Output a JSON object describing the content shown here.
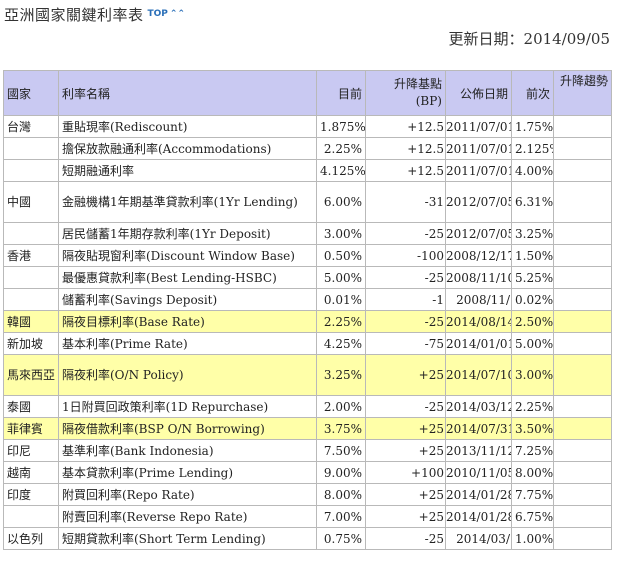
{
  "header": {
    "title": "亞洲國家關鍵利率表",
    "top_link": "TOP",
    "top_icon": "double-chevron-up-icon",
    "updated": "更新日期：2014/09/05"
  },
  "table": {
    "columns": {
      "country": "國家",
      "name": "利率名稱",
      "current": "目前",
      "change": "升降基點(BP)",
      "date": "公佈日期",
      "previous": "前次",
      "trend": "升降趨勢"
    },
    "highlight_color": "#ffffa8",
    "header_color": "#c9c9f2",
    "rows": [
      {
        "country": "台灣",
        "name": "重貼現率(Rediscount)",
        "current": "1.875%",
        "change": "+12.5",
        "date": "2011/07/01",
        "previous": "1.75%",
        "trend": "",
        "highlight": false
      },
      {
        "country": "",
        "name": "擔保放款融通利率(Accommodations)",
        "current": "2.25%",
        "change": "+12.5",
        "date": "2011/07/01",
        "previous": "2.125%",
        "trend": "",
        "highlight": false
      },
      {
        "country": "",
        "name": "短期融通利率",
        "current": "4.125%",
        "change": "+12.5",
        "date": "2011/07/01",
        "previous": "4.00%",
        "trend": "",
        "highlight": false
      },
      {
        "country": "中國",
        "name": "金融機構1年期基準貸款利率(1Yr Lending)",
        "current": "6.00%",
        "change": "-31",
        "date": "2012/07/05",
        "previous": "6.31%",
        "trend": "",
        "highlight": false,
        "tall": true
      },
      {
        "country": "",
        "name": "居民儲蓄1年期存款利率(1Yr Deposit)",
        "current": "3.00%",
        "change": "-25",
        "date": "2012/07/05",
        "previous": "3.25%",
        "trend": "",
        "highlight": false
      },
      {
        "country": "香港",
        "name": "隔夜貼現窗利率(Discount Window Base)",
        "current": "0.50%",
        "change": "-100",
        "date": "2008/12/17",
        "previous": "1.50%",
        "trend": "",
        "highlight": false
      },
      {
        "country": "",
        "name": "最優惠貸款利率(Best Lending-HSBC)",
        "current": "5.00%",
        "change": "-25",
        "date": "2008/11/10",
        "previous": "5.25%",
        "trend": "",
        "highlight": false
      },
      {
        "country": "",
        "name": "儲蓄利率(Savings Deposit)",
        "current": "0.01%",
        "change": "-1",
        "date": "2008/11/",
        "previous": "0.02%",
        "trend": "",
        "highlight": false
      },
      {
        "country": "韓國",
        "name": "隔夜目標利率(Base Rate)",
        "current": "2.25%",
        "change": "-25",
        "date": "2014/08/14",
        "previous": "2.50%",
        "trend": "",
        "highlight": true
      },
      {
        "country": "新加坡",
        "name": "基本利率(Prime Rate)",
        "current": "4.25%",
        "change": "-75",
        "date": "2014/01/01",
        "previous": "5.00%",
        "trend": "",
        "highlight": false
      },
      {
        "country": "馬來西亞",
        "name": "隔夜利率(O/N Policy)",
        "current": "3.25%",
        "change": "+25",
        "date": "2014/07/10",
        "previous": "3.00%",
        "trend": "",
        "highlight": true,
        "tall": true
      },
      {
        "country": "泰國",
        "name": "1日附買回政策利率(1D Repurchase)",
        "current": "2.00%",
        "change": "-25",
        "date": "2014/03/12",
        "previous": "2.25%",
        "trend": "",
        "highlight": false
      },
      {
        "country": "菲律賓",
        "name": "隔夜借款利率(BSP O/N Borrowing)",
        "current": "3.75%",
        "change": "+25",
        "date": "2014/07/31",
        "previous": "3.50%",
        "trend": "",
        "highlight": true
      },
      {
        "country": "印尼",
        "name": "基準利率(Bank Indonesia)",
        "current": "7.50%",
        "change": "+25",
        "date": "2013/11/12",
        "previous": "7.25%",
        "trend": "",
        "highlight": false
      },
      {
        "country": "越南",
        "name": "基本貸款利率(Prime Lending)",
        "current": "9.00%",
        "change": "+100",
        "date": "2010/11/05",
        "previous": "8.00%",
        "trend": "",
        "highlight": false
      },
      {
        "country": "印度",
        "name": "附買回利率(Repo Rate)",
        "current": "8.00%",
        "change": "+25",
        "date": "2014/01/28",
        "previous": "7.75%",
        "trend": "",
        "highlight": false
      },
      {
        "country": "",
        "name": "附賣回利率(Reverse Repo Rate)",
        "current": "7.00%",
        "change": "+25",
        "date": "2014/01/28",
        "previous": "6.75%",
        "trend": "",
        "highlight": false
      },
      {
        "country": "以色列",
        "name": "短期貸款利率(Short Term Lending)",
        "current": "0.75%",
        "change": "-25",
        "date": "2014/03/",
        "previous": "1.00%",
        "trend": "",
        "highlight": false
      }
    ]
  }
}
